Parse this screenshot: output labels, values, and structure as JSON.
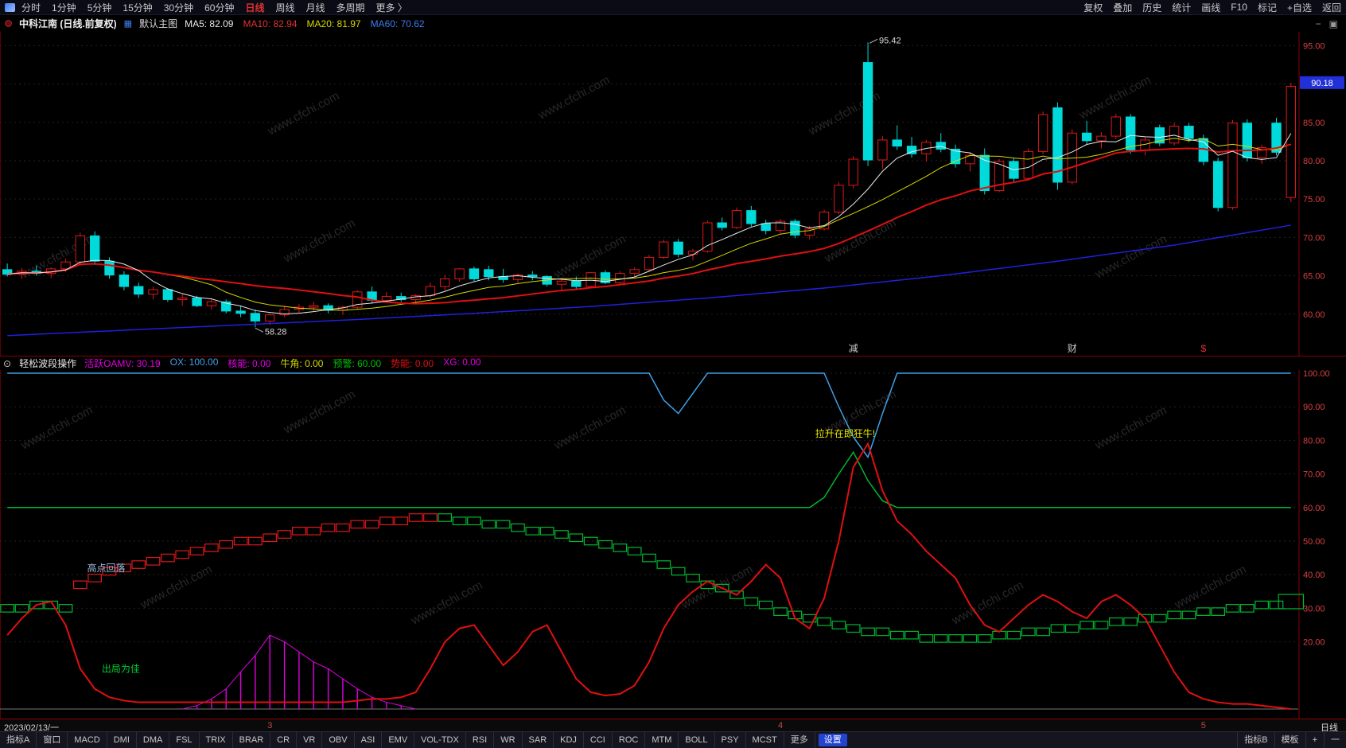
{
  "app": {
    "watermark": "www.cfchi.com"
  },
  "colors": {
    "up": "#e01818",
    "down": "#00dada",
    "ma_fast": "#e8e8e8",
    "ma_mid": "#d8d800",
    "ma_slow": "#e01010",
    "ma_long": "#2020dd",
    "axis_text": "#d84040",
    "price_tag_bg": "#2230d8",
    "sub_blue": "#3fa0e8",
    "sub_green": "#00b830",
    "sub_red": "#e01010",
    "sub_magenta": "#e000e0",
    "panel_border": "#8b0000",
    "active_period": "#e03232"
  },
  "top_bar": {
    "periods": [
      "分时",
      "1分钟",
      "5分钟",
      "15分钟",
      "30分钟",
      "60分钟",
      {
        "label": "日线",
        "active": true
      },
      "周线",
      "月线",
      "多周期",
      "更多 〉"
    ],
    "right_buttons": [
      "复权",
      "叠加",
      "历史",
      "统计",
      "画线",
      "F10",
      "标记",
      "+自选",
      "返回"
    ]
  },
  "title_bar": {
    "symbol": "中科江南 (日线.前复权)",
    "layout_label": "默认主图",
    "ma_values": [
      {
        "label": "MA5: 82.09",
        "color": "#e8e8e8"
      },
      {
        "label": "MA10: 82.94",
        "color": "#e03232"
      },
      {
        "label": "MA20: 81.97",
        "color": "#d8d800"
      },
      {
        "label": "MA60: 70.62",
        "color": "#3f7bf0"
      }
    ],
    "window_icons": [
      "−",
      "▣"
    ]
  },
  "indicator_bar": {
    "name": "轻松波段操作",
    "values": [
      {
        "label": "活跃OAMV: 30.19",
        "color": "#e000e0"
      },
      {
        "label": "OX: 100.00",
        "color": "#3fa0e8"
      },
      {
        "label": "核能: 0.00",
        "color": "#e000e0"
      },
      {
        "label": "牛角: 0.00",
        "color": "#d8d800"
      },
      {
        "label": "预警: 60.00",
        "color": "#00c000"
      },
      {
        "label": "势能: 0.00",
        "color": "#e01010"
      },
      {
        "label": "XG: 0.00",
        "color": "#e000e0"
      }
    ]
  },
  "date_row": {
    "date_label": "2023/02/13/一",
    "ticks": [
      {
        "label": "3",
        "idx": 18
      },
      {
        "label": "4",
        "idx": 53
      },
      {
        "label": "5",
        "idx": 82
      }
    ],
    "right_label": "日线"
  },
  "bottom_bar": {
    "left_tabs": [
      "指标A",
      "窗口"
    ],
    "items": [
      "MACD",
      "DMI",
      "DMA",
      "FSL",
      "TRIX",
      "BRAR",
      "CR",
      "VR",
      "OBV",
      "ASI",
      "EMV",
      "VOL-TDX",
      "RSI",
      "WR",
      "SAR",
      "KDJ",
      "CCI",
      "ROC",
      "MTM",
      "BOLL",
      "PSY",
      "MCST",
      "更多",
      {
        "label": "设置",
        "highlight": true
      }
    ],
    "right_items": [
      "指标B",
      "模板",
      "+",
      "一"
    ]
  },
  "chart_data": [
    {
      "type": "candlestick",
      "panel": "main",
      "symbol": "中科江南",
      "period": "日线",
      "adjust": "前复权",
      "ylim": [
        54.6,
        96.8
      ],
      "y_ticks": [
        95,
        90,
        85,
        80,
        75,
        70,
        65,
        60
      ],
      "current_price": 90.18,
      "annotations": [
        {
          "text": "95.42",
          "idx": 59,
          "price": 95.42
        },
        {
          "text": "58.28",
          "idx": 17,
          "price": 58.28
        }
      ],
      "overlay_marks": [
        {
          "text": "减",
          "idx": 58,
          "color": "#cccccc"
        },
        {
          "text": "财",
          "idx": 73,
          "color": "#cccccc"
        },
        {
          "text": "$",
          "idx": 82,
          "color": "#e03030"
        }
      ],
      "ma60_points": [
        [
          0,
          57.2
        ],
        [
          8,
          57.9
        ],
        [
          16,
          58.6
        ],
        [
          24,
          59.3
        ],
        [
          32,
          60.1
        ],
        [
          40,
          61.0
        ],
        [
          48,
          62.1
        ],
        [
          56,
          63.4
        ],
        [
          64,
          65.0
        ],
        [
          72,
          66.9
        ],
        [
          80,
          69.0
        ],
        [
          88,
          71.6
        ]
      ],
      "candles": [
        [
          65.8,
          66.6,
          64.9,
          65.2
        ],
        [
          65.2,
          66.0,
          64.6,
          65.6
        ],
        [
          65.6,
          66.3,
          65.0,
          65.3
        ],
        [
          65.3,
          66.1,
          64.7,
          65.9
        ],
        [
          65.9,
          67.2,
          65.5,
          66.8
        ],
        [
          66.8,
          70.6,
          66.3,
          70.2
        ],
        [
          70.2,
          70.8,
          66.4,
          66.9
        ],
        [
          66.9,
          67.4,
          64.6,
          65.1
        ],
        [
          65.1,
          65.6,
          63.1,
          63.6
        ],
        [
          63.6,
          64.1,
          62.1,
          62.6
        ],
        [
          62.6,
          63.6,
          61.9,
          63.2
        ],
        [
          63.2,
          63.4,
          61.6,
          61.9
        ],
        [
          61.9,
          62.6,
          61.1,
          62.1
        ],
        [
          62.1,
          62.4,
          60.9,
          61.1
        ],
        [
          61.1,
          62.1,
          60.6,
          61.6
        ],
        [
          61.6,
          61.9,
          60.1,
          60.4
        ],
        [
          60.4,
          61.1,
          59.6,
          60.1
        ],
        [
          60.1,
          60.6,
          58.28,
          59.1
        ],
        [
          59.1,
          60.1,
          58.6,
          59.9
        ],
        [
          59.9,
          61.1,
          59.6,
          60.6
        ],
        [
          60.6,
          61.3,
          60.1,
          60.9
        ],
        [
          60.9,
          61.6,
          60.3,
          61.1
        ],
        [
          61.1,
          61.4,
          60.1,
          60.5
        ],
        [
          60.5,
          61.1,
          59.9,
          60.9
        ],
        [
          60.9,
          63.1,
          60.6,
          62.9
        ],
        [
          62.9,
          63.6,
          61.4,
          61.8
        ],
        [
          61.8,
          62.9,
          61.5,
          62.3
        ],
        [
          62.3,
          62.8,
          61.6,
          61.9
        ],
        [
          61.9,
          62.6,
          61.4,
          62.4
        ],
        [
          62.4,
          64.1,
          62.1,
          63.6
        ],
        [
          63.6,
          65.1,
          63.1,
          64.6
        ],
        [
          64.6,
          66.0,
          64.2,
          65.9
        ],
        [
          65.9,
          66.2,
          64.2,
          64.6
        ],
        [
          65.8,
          66.3,
          64.4,
          64.9
        ],
        [
          64.9,
          65.9,
          64.1,
          64.5
        ],
        [
          64.5,
          65.3,
          64.1,
          65.1
        ],
        [
          65.1,
          65.6,
          64.4,
          64.9
        ],
        [
          64.9,
          65.1,
          63.6,
          63.9
        ],
        [
          63.9,
          64.6,
          63.1,
          64.3
        ],
        [
          64.3,
          64.9,
          63.2,
          63.6
        ],
        [
          63.6,
          65.5,
          63.4,
          65.4
        ],
        [
          65.4,
          65.7,
          63.9,
          64.1
        ],
        [
          64.1,
          65.6,
          63.9,
          65.3
        ],
        [
          65.3,
          66.1,
          64.9,
          65.8
        ],
        [
          65.8,
          67.7,
          65.5,
          67.4
        ],
        [
          67.4,
          69.7,
          67.2,
          69.4
        ],
        [
          69.4,
          69.8,
          67.4,
          67.8
        ],
        [
          67.8,
          68.5,
          67.0,
          68.2
        ],
        [
          68.2,
          72.2,
          68.0,
          71.9
        ],
        [
          71.9,
          72.6,
          70.9,
          71.3
        ],
        [
          71.3,
          73.9,
          71.1,
          73.5
        ],
        [
          73.5,
          74.1,
          71.4,
          71.8
        ],
        [
          71.8,
          72.3,
          70.4,
          70.9
        ],
        [
          70.9,
          72.4,
          70.4,
          72.1
        ],
        [
          72.1,
          72.4,
          69.9,
          70.3
        ],
        [
          70.3,
          71.5,
          69.7,
          71.1
        ],
        [
          71.1,
          73.6,
          70.9,
          73.3
        ],
        [
          73.3,
          77.2,
          73.0,
          76.8
        ],
        [
          76.8,
          80.6,
          76.4,
          80.2
        ],
        [
          92.8,
          95.42,
          79.3,
          80.1
        ],
        [
          80.1,
          83.2,
          78.9,
          82.7
        ],
        [
          82.7,
          84.6,
          81.4,
          81.9
        ],
        [
          81.9,
          83.1,
          80.4,
          80.9
        ],
        [
          80.9,
          82.7,
          79.9,
          82.4
        ],
        [
          82.4,
          83.6,
          81.1,
          81.5
        ],
        [
          81.5,
          82.1,
          79.1,
          79.6
        ],
        [
          79.6,
          81.1,
          78.6,
          80.7
        ],
        [
          80.7,
          81.6,
          75.6,
          76.1
        ],
        [
          76.1,
          80.2,
          75.9,
          79.9
        ],
        [
          79.9,
          80.3,
          77.3,
          77.7
        ],
        [
          77.7,
          81.6,
          77.4,
          81.2
        ],
        [
          81.2,
          86.4,
          80.9,
          86.0
        ],
        [
          86.9,
          87.6,
          76.2,
          77.2
        ],
        [
          77.2,
          84.1,
          76.9,
          83.6
        ],
        [
          83.6,
          85.2,
          82.1,
          82.6
        ],
        [
          82.6,
          83.7,
          81.6,
          83.2
        ],
        [
          83.2,
          86.1,
          82.8,
          85.7
        ],
        [
          85.7,
          86.1,
          80.9,
          81.4
        ],
        [
          81.4,
          83.1,
          80.7,
          82.7
        ],
        [
          84.3,
          84.7,
          81.9,
          82.3
        ],
        [
          82.3,
          84.9,
          82.0,
          84.5
        ],
        [
          84.5,
          84.9,
          82.4,
          82.9
        ],
        [
          82.9,
          83.4,
          79.4,
          79.9
        ],
        [
          79.9,
          80.4,
          73.4,
          73.9
        ],
        [
          73.9,
          85.3,
          73.6,
          84.9
        ],
        [
          84.9,
          85.4,
          79.9,
          80.4
        ],
        [
          80.4,
          82.1,
          79.6,
          81.7
        ],
        [
          84.9,
          85.6,
          80.7,
          81.1
        ],
        [
          75.2,
          90.18,
          74.6,
          89.7
        ]
      ]
    },
    {
      "type": "composite",
      "panel": "indicator",
      "name": "轻松波段操作",
      "ylim": [
        -3,
        103
      ],
      "y_ticks": [
        100,
        90,
        80,
        70,
        60,
        50,
        40,
        30,
        20
      ],
      "ox_blue_points": [
        [
          0,
          100
        ],
        [
          44,
          100
        ],
        [
          45,
          92
        ],
        [
          46,
          88
        ],
        [
          47,
          94
        ],
        [
          48,
          100
        ],
        [
          56,
          100
        ],
        [
          57,
          90
        ],
        [
          58,
          81
        ],
        [
          59,
          75
        ],
        [
          60,
          88
        ],
        [
          61,
          100
        ],
        [
          88,
          100
        ]
      ],
      "alert_green_points": [
        [
          0,
          60
        ],
        [
          55,
          60
        ],
        [
          56,
          63
        ],
        [
          57,
          70
        ],
        [
          58,
          76.5
        ],
        [
          59,
          68
        ],
        [
          60,
          62
        ],
        [
          61,
          60
        ],
        [
          88,
          60
        ]
      ],
      "momentum_red": [
        22,
        27,
        31,
        32,
        25,
        12,
        6,
        3.5,
        2.5,
        2,
        2,
        2,
        2,
        2,
        2,
        2,
        2,
        2,
        2,
        2,
        2,
        2,
        2,
        2,
        2.5,
        3,
        3,
        3.5,
        5,
        12,
        20,
        24,
        25,
        19,
        13,
        17,
        23,
        25,
        17,
        9,
        5,
        4,
        4.5,
        7,
        14,
        24,
        31,
        35,
        38,
        36,
        34,
        38,
        43,
        39,
        27,
        24,
        33,
        50,
        72,
        79,
        65,
        56,
        52,
        47,
        43,
        39,
        31,
        25,
        23,
        27,
        31,
        34,
        32,
        29,
        27,
        32,
        34,
        31,
        27,
        19,
        11,
        5,
        3,
        2,
        1.5,
        1.5,
        1,
        0.5,
        0
      ],
      "bar_values": [
        30,
        30,
        31,
        31,
        30,
        37,
        39,
        41,
        42,
        43,
        44,
        45,
        46,
        47,
        48,
        49,
        50,
        50,
        51,
        52,
        53,
        53,
        54,
        54,
        55,
        55,
        56,
        56,
        57,
        57,
        57,
        56,
        56,
        55,
        55,
        54,
        53,
        53,
        52,
        51,
        50,
        49,
        48,
        47,
        45,
        43,
        41,
        39,
        37,
        36,
        34,
        32,
        31,
        29,
        28,
        27,
        26,
        25,
        24,
        23,
        23,
        22,
        22,
        21,
        21,
        21,
        21,
        21,
        22,
        22,
        23,
        23,
        24,
        24,
        25,
        25,
        26,
        26,
        27,
        27,
        28,
        28,
        29,
        29,
        30,
        30,
        31,
        31,
        32
      ],
      "bar_segments": [
        {
          "from": 0,
          "to": 4,
          "color": "green"
        },
        {
          "from": 5,
          "to": 29,
          "color": "red"
        },
        {
          "from": 30,
          "to": 88,
          "color": "green"
        }
      ],
      "spikes": [
        [
          13,
          1
        ],
        [
          14,
          3
        ],
        [
          15,
          6
        ],
        [
          16,
          11
        ],
        [
          17,
          16
        ],
        [
          18,
          22
        ],
        [
          19,
          20
        ],
        [
          20,
          17
        ],
        [
          21,
          14
        ],
        [
          22,
          12
        ],
        [
          23,
          9
        ],
        [
          24,
          6
        ],
        [
          25,
          3.5
        ],
        [
          26,
          2
        ],
        [
          27,
          1
        ]
      ],
      "annotations": [
        {
          "text": "高点回落",
          "idx": 7,
          "value": 41,
          "color": "#9db8d8",
          "dx": -28,
          "anchor": "start"
        },
        {
          "text": "出局为佳",
          "idx": 8,
          "value": 11,
          "color": "#00cc33",
          "dx": -28,
          "anchor": "start"
        },
        {
          "text": "拉升在即狂牛!",
          "idx": 57,
          "value": 81,
          "color": "#e8e800",
          "dx": 8,
          "anchor": "middle"
        }
      ]
    }
  ]
}
